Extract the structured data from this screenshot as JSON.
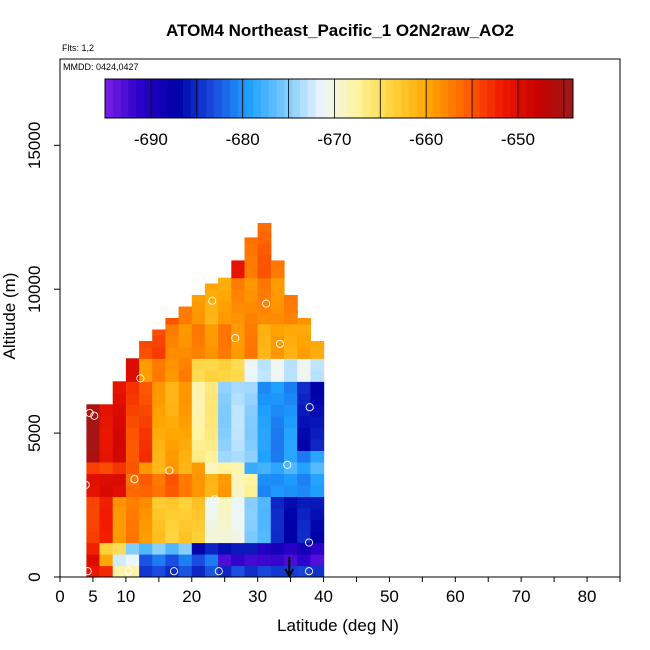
{
  "chart_data": {
    "type": "heatmap",
    "title": "ATOM4 Northeast_Pacific_1 O2N2raw_AO2",
    "subtitle_flights": "Flts: 1,2",
    "subtitle_dates": "MMDD: 0424,0427",
    "xlabel": "Latitude (deg N)",
    "ylabel": "Altitude (m)",
    "xlim": [
      0,
      85
    ],
    "ylim": [
      0,
      18000
    ],
    "xticks": [
      0,
      5,
      10,
      20,
      30,
      40,
      50,
      60,
      70,
      80
    ],
    "xtick_labels": [
      "0",
      "5",
      "10",
      "20",
      "30",
      "40",
      "50",
      "60",
      "70",
      "80"
    ],
    "yticks": [
      0,
      5000,
      10000,
      15000
    ],
    "ytick_labels": [
      "0",
      "5000",
      "10000",
      "15000"
    ],
    "colorbar": {
      "range": [
        -695,
        -644
      ],
      "ticks": [
        -690,
        -680,
        -670,
        -660,
        -650
      ],
      "tick_labels": [
        "-690",
        "-680",
        "-670",
        "-660",
        "-650"
      ],
      "colors": [
        "#7a1fe6",
        "#2a00c8",
        "#0000a8",
        "#1a4be0",
        "#1ea0ff",
        "#78c8ff",
        "#eaf6ff",
        "#fff4a0",
        "#ffd23a",
        "#ffa400",
        "#ff6400",
        "#f01a00",
        "#c80000",
        "#9c1a1a"
      ]
    },
    "legend_position": "top",
    "grid": false,
    "profile_lats": [
      4,
      6,
      8,
      10,
      12,
      14,
      16,
      18,
      20,
      22,
      24,
      26,
      28,
      30,
      32,
      34,
      36,
      38
    ],
    "profile_tops": [
      6000,
      6000,
      6800,
      7600,
      8200,
      8600,
      9000,
      9400,
      9800,
      10200,
      10400,
      11000,
      11800,
      12300,
      11000,
      9800,
      9000,
      8200
    ],
    "points": [
      {
        "lat": 4.2,
        "alt": 200
      },
      {
        "lat": 3.9,
        "alt": 3200
      },
      {
        "lat": 4.5,
        "alt": 5700
      },
      {
        "lat": 5.2,
        "alt": 5600
      },
      {
        "lat": 9.2,
        "alt": 7600
      },
      {
        "lat": 12.2,
        "alt": 6900
      },
      {
        "lat": 11.3,
        "alt": 3400
      },
      {
        "lat": 16.6,
        "alt": 3700
      },
      {
        "lat": 10.4,
        "alt": 200
      },
      {
        "lat": 17.3,
        "alt": 200
      },
      {
        "lat": 24.1,
        "alt": 200
      },
      {
        "lat": 23.5,
        "alt": 2700
      },
      {
        "lat": 23.1,
        "alt": 9600
      },
      {
        "lat": 26.6,
        "alt": 8300
      },
      {
        "lat": 27.4,
        "alt": 11700
      },
      {
        "lat": 31.3,
        "alt": 9500
      },
      {
        "lat": 33.4,
        "alt": 8100
      },
      {
        "lat": 34.5,
        "alt": 3900
      },
      {
        "lat": 37.9,
        "alt": 5900
      },
      {
        "lat": 37.8,
        "alt": 1200
      },
      {
        "lat": 37.8,
        "alt": 200
      }
    ],
    "arrow_marker": {
      "lat": 34.8,
      "alt_top": 700,
      "alt_bottom": 0
    }
  }
}
